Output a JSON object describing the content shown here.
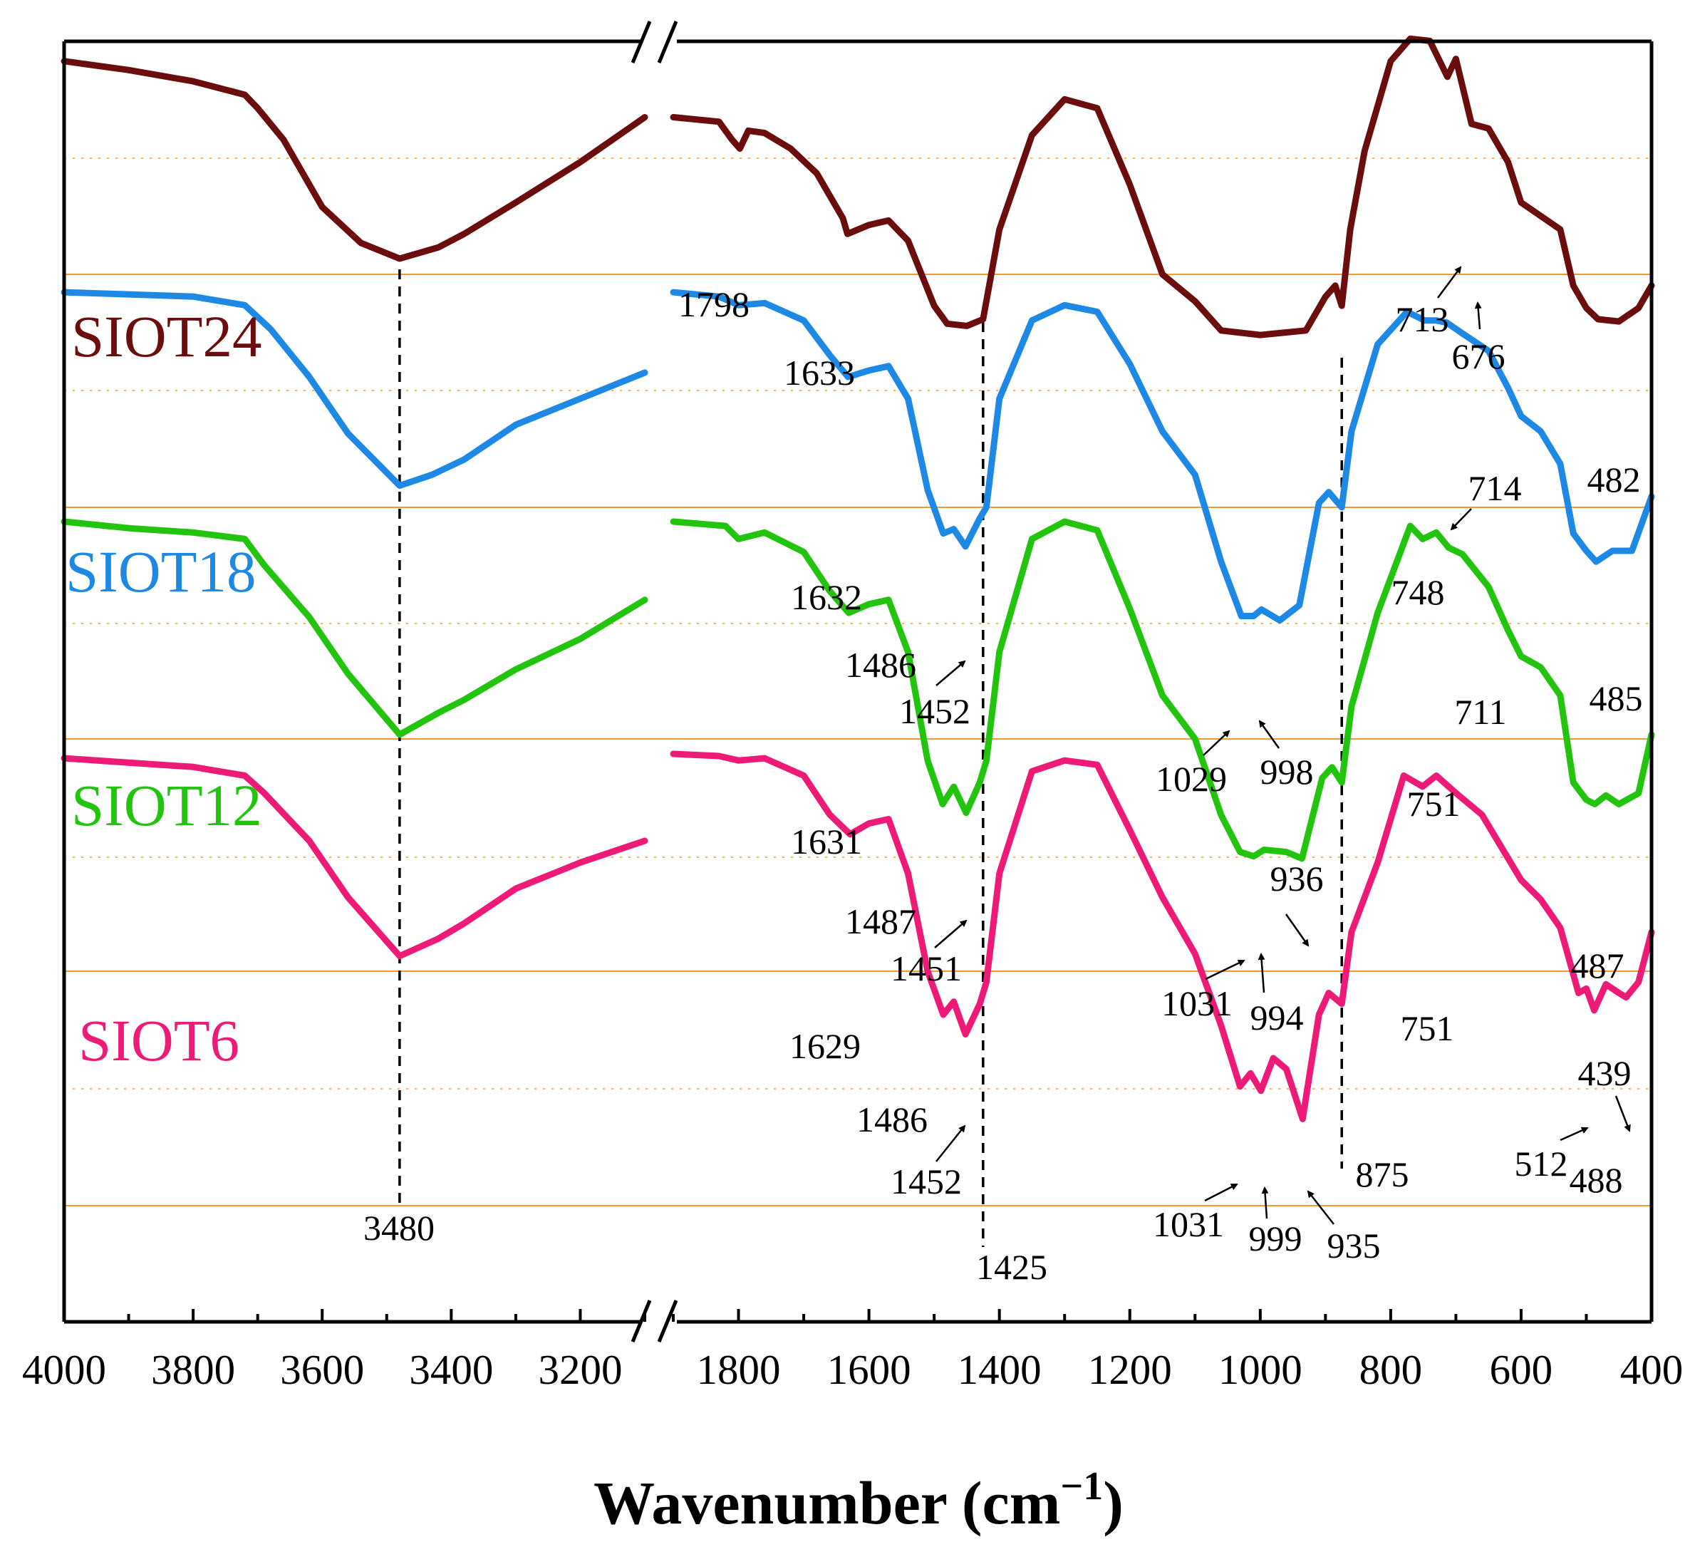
{
  "chart_data": {
    "type": "line",
    "title": "",
    "xlabel": "Wavenumber (cm",
    "xlabel_sup": "−1",
    "xlabel_close": ")",
    "ylabel": "",
    "x_break": {
      "left_range": [
        4000,
        3100
      ],
      "right_range": [
        1900,
        400
      ]
    },
    "x_ticks_left": [
      "4000",
      "3800",
      "3600",
      "3400",
      "3200"
    ],
    "x_ticks_right": [
      "1800",
      "1600",
      "1400",
      "1200",
      "1000",
      "800",
      "600",
      "400"
    ],
    "grid": false,
    "colors": {
      "SIOT24": "#6b0d0d",
      "SIOT18": "#1e88e5",
      "SIOT12": "#22c40e",
      "SIOT6": "#ee1a78",
      "baseline": "#f39a2e"
    },
    "guide_lines": [
      {
        "x": 3480,
        "label": "3480"
      },
      {
        "x": 1425,
        "label": "1425"
      },
      {
        "x": 875,
        "label": "875"
      }
    ],
    "series": [
      {
        "name": "SIOT24",
        "points": [
          [
            4000,
            0.95
          ],
          [
            3900,
            0.91
          ],
          [
            3800,
            0.86
          ],
          [
            3720,
            0.8
          ],
          [
            3700,
            0.74
          ],
          [
            3660,
            0.6
          ],
          [
            3600,
            0.3
          ],
          [
            3540,
            0.14
          ],
          [
            3480,
            0.07
          ],
          [
            3420,
            0.12
          ],
          [
            3380,
            0.18
          ],
          [
            3300,
            0.32
          ],
          [
            3200,
            0.5
          ],
          [
            3100,
            0.7
          ],
          null,
          [
            1900,
            0.7
          ],
          [
            1830,
            0.68
          ],
          [
            1810,
            0.6
          ],
          [
            1798,
            0.56
          ],
          [
            1785,
            0.64
          ],
          [
            1760,
            0.63
          ],
          [
            1720,
            0.56
          ],
          [
            1680,
            0.45
          ],
          [
            1640,
            0.25
          ],
          [
            1633,
            0.18
          ],
          [
            1600,
            0.22
          ],
          [
            1570,
            0.24
          ],
          [
            1540,
            0.15
          ],
          [
            1500,
            -0.14
          ],
          [
            1480,
            -0.22
          ],
          [
            1450,
            -0.23
          ],
          [
            1425,
            -0.2
          ],
          [
            1400,
            0.2
          ],
          [
            1350,
            0.62
          ],
          [
            1300,
            0.78
          ],
          [
            1250,
            0.74
          ],
          [
            1200,
            0.4
          ],
          [
            1150,
            0.0
          ],
          [
            1100,
            -0.12
          ],
          [
            1060,
            -0.25
          ],
          [
            1000,
            -0.27
          ],
          [
            930,
            -0.25
          ],
          [
            900,
            -0.1
          ],
          [
            885,
            -0.05
          ],
          [
            875,
            -0.14
          ],
          [
            862,
            0.2
          ],
          [
            840,
            0.55
          ],
          [
            800,
            0.95
          ],
          [
            770,
            1.05
          ],
          [
            740,
            1.04
          ],
          [
            713,
            0.88
          ],
          [
            700,
            0.96
          ],
          [
            676,
            0.67
          ],
          [
            650,
            0.65
          ],
          [
            620,
            0.5
          ],
          [
            600,
            0.32
          ],
          [
            570,
            0.26
          ],
          [
            540,
            0.2
          ],
          [
            520,
            -0.05
          ],
          [
            500,
            -0.15
          ],
          [
            482,
            -0.2
          ],
          [
            450,
            -0.21
          ],
          [
            420,
            -0.15
          ],
          [
            400,
            -0.05
          ]
        ]
      },
      {
        "name": "SIOT18",
        "points": [
          [
            4000,
            0.99
          ],
          [
            3900,
            0.98
          ],
          [
            3800,
            0.97
          ],
          [
            3720,
            0.93
          ],
          [
            3680,
            0.82
          ],
          [
            3620,
            0.6
          ],
          [
            3560,
            0.34
          ],
          [
            3480,
            0.1
          ],
          [
            3430,
            0.15
          ],
          [
            3380,
            0.22
          ],
          [
            3300,
            0.38
          ],
          [
            3200,
            0.5
          ],
          [
            3100,
            0.62
          ],
          null,
          [
            1900,
            0.99
          ],
          [
            1830,
            0.97
          ],
          [
            1800,
            0.93
          ],
          [
            1760,
            0.94
          ],
          [
            1700,
            0.86
          ],
          [
            1660,
            0.7
          ],
          [
            1632,
            0.6
          ],
          [
            1600,
            0.63
          ],
          [
            1570,
            0.65
          ],
          [
            1540,
            0.5
          ],
          [
            1510,
            0.08
          ],
          [
            1486,
            -0.12
          ],
          [
            1470,
            -0.1
          ],
          [
            1452,
            -0.18
          ],
          [
            1430,
            -0.05
          ],
          [
            1420,
            0.0
          ],
          [
            1400,
            0.5
          ],
          [
            1350,
            0.86
          ],
          [
            1300,
            0.93
          ],
          [
            1250,
            0.9
          ],
          [
            1200,
            0.66
          ],
          [
            1150,
            0.35
          ],
          [
            1100,
            0.15
          ],
          [
            1060,
            -0.25
          ],
          [
            1029,
            -0.5
          ],
          [
            1010,
            -0.5
          ],
          [
            998,
            -0.47
          ],
          [
            970,
            -0.52
          ],
          [
            940,
            -0.45
          ],
          [
            910,
            0.02
          ],
          [
            895,
            0.07
          ],
          [
            875,
            0.0
          ],
          [
            860,
            0.35
          ],
          [
            820,
            0.75
          ],
          [
            775,
            0.9
          ],
          [
            748,
            0.86
          ],
          [
            730,
            0.86
          ],
          [
            714,
            0.85
          ],
          [
            690,
            0.8
          ],
          [
            650,
            0.72
          ],
          [
            620,
            0.55
          ],
          [
            600,
            0.42
          ],
          [
            570,
            0.35
          ],
          [
            540,
            0.2
          ],
          [
            520,
            -0.12
          ],
          [
            500,
            -0.2
          ],
          [
            485,
            -0.25
          ],
          [
            460,
            -0.2
          ],
          [
            430,
            -0.2
          ],
          [
            400,
            0.05
          ]
        ]
      },
      {
        "name": "SIOT12",
        "points": [
          [
            4000,
            1.0
          ],
          [
            3900,
            0.97
          ],
          [
            3800,
            0.95
          ],
          [
            3720,
            0.92
          ],
          [
            3690,
            0.8
          ],
          [
            3620,
            0.56
          ],
          [
            3560,
            0.3
          ],
          [
            3480,
            0.02
          ],
          [
            3420,
            0.12
          ],
          [
            3380,
            0.18
          ],
          [
            3300,
            0.32
          ],
          [
            3200,
            0.46
          ],
          [
            3100,
            0.64
          ],
          null,
          [
            1900,
            1.0
          ],
          [
            1820,
            0.98
          ],
          [
            1800,
            0.92
          ],
          [
            1760,
            0.95
          ],
          [
            1700,
            0.86
          ],
          [
            1660,
            0.68
          ],
          [
            1631,
            0.58
          ],
          [
            1600,
            0.62
          ],
          [
            1570,
            0.64
          ],
          [
            1540,
            0.4
          ],
          [
            1510,
            -0.1
          ],
          [
            1487,
            -0.3
          ],
          [
            1470,
            -0.22
          ],
          [
            1451,
            -0.34
          ],
          [
            1430,
            -0.2
          ],
          [
            1420,
            -0.1
          ],
          [
            1400,
            0.4
          ],
          [
            1350,
            0.92
          ],
          [
            1300,
            1.0
          ],
          [
            1250,
            0.96
          ],
          [
            1200,
            0.6
          ],
          [
            1150,
            0.2
          ],
          [
            1100,
            0.0
          ],
          [
            1060,
            -0.35
          ],
          [
            1031,
            -0.52
          ],
          [
            1010,
            -0.54
          ],
          [
            994,
            -0.51
          ],
          [
            960,
            -0.52
          ],
          [
            936,
            -0.55
          ],
          [
            905,
            -0.18
          ],
          [
            890,
            -0.13
          ],
          [
            875,
            -0.2
          ],
          [
            860,
            0.15
          ],
          [
            820,
            0.58
          ],
          [
            770,
            0.98
          ],
          [
            751,
            0.92
          ],
          [
            730,
            0.95
          ],
          [
            711,
            0.88
          ],
          [
            690,
            0.85
          ],
          [
            650,
            0.7
          ],
          [
            620,
            0.5
          ],
          [
            600,
            0.38
          ],
          [
            570,
            0.33
          ],
          [
            540,
            0.2
          ],
          [
            520,
            -0.2
          ],
          [
            500,
            -0.28
          ],
          [
            487,
            -0.3
          ],
          [
            470,
            -0.26
          ],
          [
            450,
            -0.3
          ],
          [
            420,
            -0.25
          ],
          [
            400,
            0.02
          ]
        ]
      },
      {
        "name": "SIOT6",
        "points": [
          [
            4000,
            0.98
          ],
          [
            3900,
            0.96
          ],
          [
            3800,
            0.94
          ],
          [
            3720,
            0.9
          ],
          [
            3690,
            0.82
          ],
          [
            3620,
            0.6
          ],
          [
            3560,
            0.34
          ],
          [
            3480,
            0.07
          ],
          [
            3420,
            0.15
          ],
          [
            3380,
            0.22
          ],
          [
            3300,
            0.38
          ],
          [
            3200,
            0.5
          ],
          [
            3100,
            0.6
          ],
          null,
          [
            1900,
            1.0
          ],
          [
            1830,
            0.99
          ],
          [
            1800,
            0.97
          ],
          [
            1760,
            0.98
          ],
          [
            1700,
            0.9
          ],
          [
            1660,
            0.72
          ],
          [
            1629,
            0.63
          ],
          [
            1600,
            0.68
          ],
          [
            1570,
            0.7
          ],
          [
            1540,
            0.45
          ],
          [
            1510,
            0.0
          ],
          [
            1486,
            -0.2
          ],
          [
            1470,
            -0.14
          ],
          [
            1452,
            -0.29
          ],
          [
            1430,
            -0.15
          ],
          [
            1420,
            -0.05
          ],
          [
            1400,
            0.45
          ],
          [
            1350,
            0.92
          ],
          [
            1300,
            0.97
          ],
          [
            1250,
            0.95
          ],
          [
            1200,
            0.65
          ],
          [
            1150,
            0.34
          ],
          [
            1100,
            0.08
          ],
          [
            1060,
            -0.25
          ],
          [
            1031,
            -0.53
          ],
          [
            1015,
            -0.47
          ],
          [
            999,
            -0.55
          ],
          [
            980,
            -0.4
          ],
          [
            960,
            -0.45
          ],
          [
            935,
            -0.68
          ],
          [
            910,
            -0.2
          ],
          [
            895,
            -0.1
          ],
          [
            875,
            -0.15
          ],
          [
            860,
            0.18
          ],
          [
            820,
            0.5
          ],
          [
            780,
            0.9
          ],
          [
            751,
            0.85
          ],
          [
            730,
            0.9
          ],
          [
            700,
            0.82
          ],
          [
            660,
            0.72
          ],
          [
            620,
            0.52
          ],
          [
            600,
            0.42
          ],
          [
            570,
            0.33
          ],
          [
            540,
            0.2
          ],
          [
            512,
            -0.1
          ],
          [
            500,
            -0.08
          ],
          [
            488,
            -0.18
          ],
          [
            470,
            -0.06
          ],
          [
            450,
            -0.1
          ],
          [
            439,
            -0.12
          ],
          [
            420,
            -0.05
          ],
          [
            400,
            0.18
          ]
        ]
      }
    ],
    "annotations": [
      {
        "series": "SIOT24",
        "text": "1798"
      },
      {
        "series": "SIOT24",
        "text": "1633"
      },
      {
        "series": "SIOT24",
        "text": "713"
      },
      {
        "series": "SIOT24",
        "text": "676"
      },
      {
        "series": "SIOT24",
        "text": "482"
      },
      {
        "series": "SIOT18",
        "text": "714"
      },
      {
        "series": "SIOT18",
        "text": "1632"
      },
      {
        "series": "SIOT18",
        "text": "748"
      },
      {
        "series": "SIOT18",
        "text": "1486"
      },
      {
        "series": "SIOT18",
        "text": "1452"
      },
      {
        "series": "SIOT18",
        "text": "485"
      },
      {
        "series": "SIOT18",
        "text": "1029"
      },
      {
        "series": "SIOT18",
        "text": "998"
      },
      {
        "series": "SIOT12",
        "text": "711"
      },
      {
        "series": "SIOT12",
        "text": "751"
      },
      {
        "series": "SIOT12",
        "text": "1631"
      },
      {
        "series": "SIOT12",
        "text": "936"
      },
      {
        "series": "SIOT12",
        "text": "1487"
      },
      {
        "series": "SIOT12",
        "text": "1451"
      },
      {
        "series": "SIOT12",
        "text": "487"
      },
      {
        "series": "SIOT12",
        "text": "1031"
      },
      {
        "series": "SIOT12",
        "text": "994"
      },
      {
        "series": "SIOT6",
        "text": "751"
      },
      {
        "series": "SIOT6",
        "text": "1629"
      },
      {
        "series": "SIOT6",
        "text": "439"
      },
      {
        "series": "SIOT6",
        "text": "1486"
      },
      {
        "series": "SIOT6",
        "text": "512"
      },
      {
        "series": "SIOT6",
        "text": "488"
      },
      {
        "series": "SIOT6",
        "text": "875"
      },
      {
        "series": "SIOT6",
        "text": "1452"
      },
      {
        "series": "SIOT6",
        "text": "1031"
      },
      {
        "series": "SIOT6",
        "text": "999"
      },
      {
        "series": "SIOT6",
        "text": "935"
      }
    ]
  }
}
